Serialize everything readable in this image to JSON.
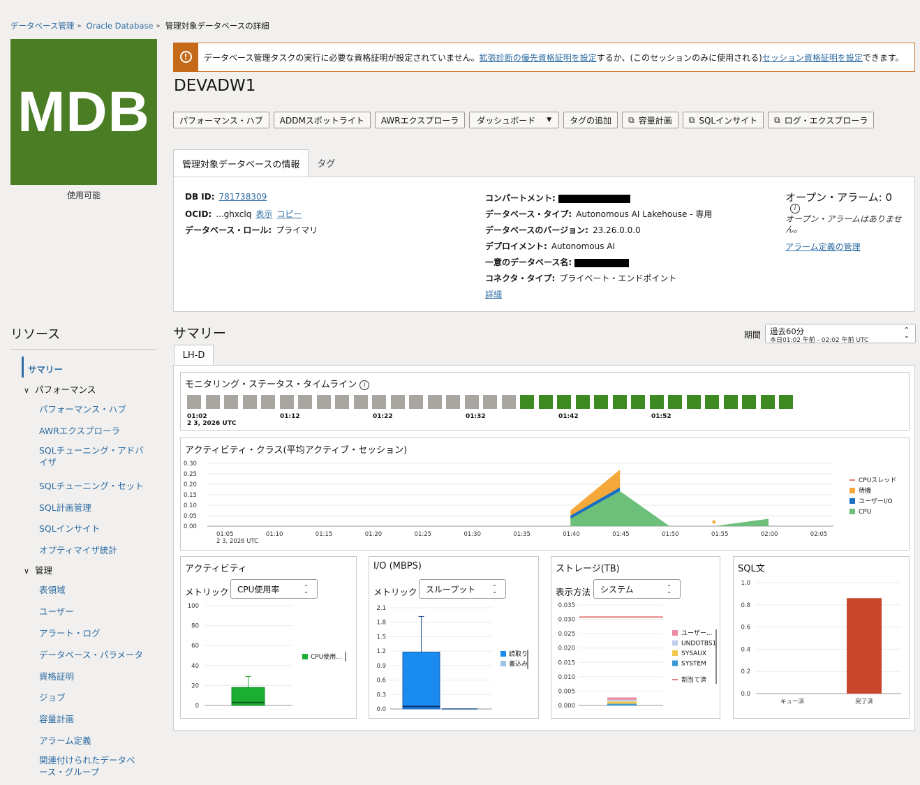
{
  "breadcrumb": {
    "item1": "データベース管理",
    "item2": "Oracle Database",
    "current": "管理対象データベースの詳細"
  },
  "logo": {
    "text": "MDB",
    "status": "使用可能",
    "color": "#4a7d24"
  },
  "alert": {
    "icon": "warning-icon",
    "text1": "データベース管理タスクの実行に必要な資格証明が設定されていません。",
    "link1": "拡張診断の優先資格証明を設定",
    "text2": "するか、(このセッションのみに使用される)",
    "link2": "セッション資格証明を設定",
    "text3": "できます。"
  },
  "title": "DEVADW1",
  "toolbar": {
    "perf_hub": "パフォーマンス・ハブ",
    "addm": "ADDMスポットライト",
    "awr": "AWRエクスプローラ",
    "dashboard": "ダッシュボード",
    "add_tag": "タグの追加",
    "capacity": "容量計画",
    "sql_insight": "SQLインサイト",
    "log_explorer": "ログ・エクスプローラ"
  },
  "tabs": {
    "info": "管理対象データベースの情報",
    "tags": "タグ"
  },
  "info": {
    "dbid_k": "DB ID:",
    "dbid_v": "781738309",
    "ocid_k": "OCID:",
    "ocid_v": "...ghxclq",
    "ocid_show": "表示",
    "ocid_copy": "コピー",
    "role_k": "データベース・ロール:",
    "role_v": "プライマリ",
    "comp_k": "コンパートメント:",
    "type_k": "データベース・タイプ:",
    "type_v": "Autonomous AI Lakehouse - 専用",
    "ver_k": "データベースのバージョン:",
    "ver_v": "23.26.0.0.0",
    "dep_k": "デプロイメント:",
    "dep_v": "Autonomous AI",
    "uniq_k": "一意のデータベース名:",
    "conn_k": "コネクタ・タイプ:",
    "conn_v": "プライベート・エンドポイント",
    "detail": "詳細"
  },
  "alarms": {
    "title": "オープン・アラーム: 0",
    "none": "オープン・アラームはありません。",
    "link": "アラーム定義の管理"
  },
  "sidebar": {
    "title": "リソース",
    "summary": "サマリー",
    "performance": "パフォーマンス",
    "perf_items": [
      "パフォーマンス・ハブ",
      "AWRエクスプローラ",
      "SQLチューニング・アドバイザ",
      "SQLチューニング・セット",
      "SQL計画管理",
      "SQLインサイト",
      "オプティマイザ統計"
    ],
    "manage": "管理",
    "manage_items": [
      "表領域",
      "ユーザー",
      "アラート・ログ",
      "データベース・パラメータ",
      "資格証明",
      "ジョブ",
      "容量計画",
      "アラーム定義",
      "関連付けられたデータベース・グループ"
    ]
  },
  "summary": {
    "title": "サマリー",
    "period_label": "期間",
    "period_value": "過去60分",
    "period_range": "本日01:02 午前 - 02:02 午前 UTC",
    "tab": "LH-D"
  },
  "timeline": {
    "title": "モニタリング・ステータス・タイムライン",
    "states": [
      "gray",
      "gray",
      "gray",
      "gray",
      "gray",
      "gray",
      "gray",
      "gray",
      "gray",
      "gray",
      "gray",
      "gray",
      "gray",
      "gray",
      "gray",
      "gray",
      "gray",
      "gray",
      "green",
      "green",
      "green",
      "green",
      "green",
      "green",
      "green",
      "green",
      "green",
      "green",
      "green",
      "green",
      "green",
      "green",
      "green"
    ],
    "colors": {
      "gray": "#a9a5a0",
      "green": "#3d8a23"
    },
    "labels": [
      "01:02",
      "01:12",
      "01:22",
      "01:32",
      "01:42",
      "01:52"
    ],
    "date": "2 3, 2026 UTC"
  },
  "chart_data": [
    {
      "type": "area",
      "title": "アクティビティ・クラス(平均アクティブ・セッション)",
      "x": [
        "01:05",
        "01:10",
        "01:15",
        "01:20",
        "01:25",
        "01:30",
        "01:35",
        "01:40",
        "01:45",
        "01:50",
        "01:55",
        "02:00",
        "02:05"
      ],
      "x_date": "2 3, 2026 UTC",
      "yticks": [
        "0.30",
        "0.25",
        "0.20",
        "0.15",
        "0.10",
        "0.05",
        "0.00"
      ],
      "ylim": [
        0,
        0.3
      ],
      "series": [
        {
          "name": "CPUスレッド",
          "color": "#e2583e"
        },
        {
          "name": "待機",
          "color": "#f5a93b"
        },
        {
          "name": "ユーザーI/O",
          "color": "#1a6fc4"
        },
        {
          "name": "CPU",
          "color": "#6cc07a"
        }
      ],
      "events": [
        {
          "cpu": [
            [
              1.9,
              0.05
            ],
            [
              1.92,
              0.166
            ],
            [
              1.97,
              0
            ]
          ]
        },
        {
          "wait_top": [
            [
              1.9,
              0.08
            ],
            [
              1.92,
              0.27
            ]
          ]
        },
        {
          "point": [
            1.955,
            0.02
          ]
        },
        {
          "cpu2": [
            [
              1.975,
              0
            ],
            [
              1.999,
              0.035
            ],
            [
              1.999,
              0
            ]
          ]
        }
      ]
    },
    {
      "type": "box",
      "title": "アクティビティ",
      "metric_label": "メトリック",
      "metric": "CPU使用率",
      "yticks": [
        "100",
        "80",
        "60",
        "40",
        "20",
        "0"
      ],
      "ylim": [
        0,
        100
      ],
      "series": [
        {
          "name": "CPU使用率",
          "color": "#1cae32"
        }
      ],
      "legend_text": "CPU使用...",
      "box": {
        "q1": 0,
        "q3": 18,
        "median": 3,
        "max": 29
      }
    },
    {
      "type": "box",
      "title": "I/O (MBPS)",
      "metric_label": "メトリック",
      "metric": "スループット",
      "yticks": [
        "2.1",
        "1.8",
        "1.5",
        "1.2",
        "0.9",
        "0.6",
        "0.3",
        "0.0"
      ],
      "ylim": [
        0,
        2.1
      ],
      "series": [
        {
          "name": "読取り",
          "color": "#1a8cf0"
        },
        {
          "name": "書込み",
          "color": "#9ec6e8"
        }
      ],
      "legend_text": [
        "読取り",
        "書込み"
      ],
      "box": {
        "q1": 0,
        "q3": 1.18,
        "median": 0.05,
        "max": 1.92
      }
    },
    {
      "type": "bar",
      "title": "ストレージ(TB)",
      "metric_label": "表示方法",
      "metric": "システム",
      "yticks": [
        "0.035",
        "0.030",
        "0.025",
        "0.020",
        "0.015",
        "0.010",
        "0.005",
        "0.000"
      ],
      "ylim": [
        0,
        0.035
      ],
      "allocated": 0.0308,
      "series": [
        {
          "name": "ユーザー...",
          "color": "#e88ca3",
          "value": 0.0008
        },
        {
          "name": "UNDOTBS1",
          "color": "#c2cfe8",
          "value": 0.0006
        },
        {
          "name": "SYSAUX",
          "color": "#f0c94a",
          "value": 0.0008
        },
        {
          "name": "SYSTEM",
          "color": "#3c98d2",
          "value": 0.0006
        }
      ],
      "allocated_label": "割当て済",
      "allocated_color": "#d9534f"
    },
    {
      "type": "bar",
      "title": "SQL文",
      "categories": [
        "キュー済",
        "完了済"
      ],
      "values": [
        0,
        0.86
      ],
      "yticks": [
        "1.0",
        "0.8",
        "0.6",
        "0.4",
        "0.2",
        "0.0"
      ],
      "ylim": [
        0,
        1.0
      ],
      "color": "#c7452b"
    }
  ]
}
